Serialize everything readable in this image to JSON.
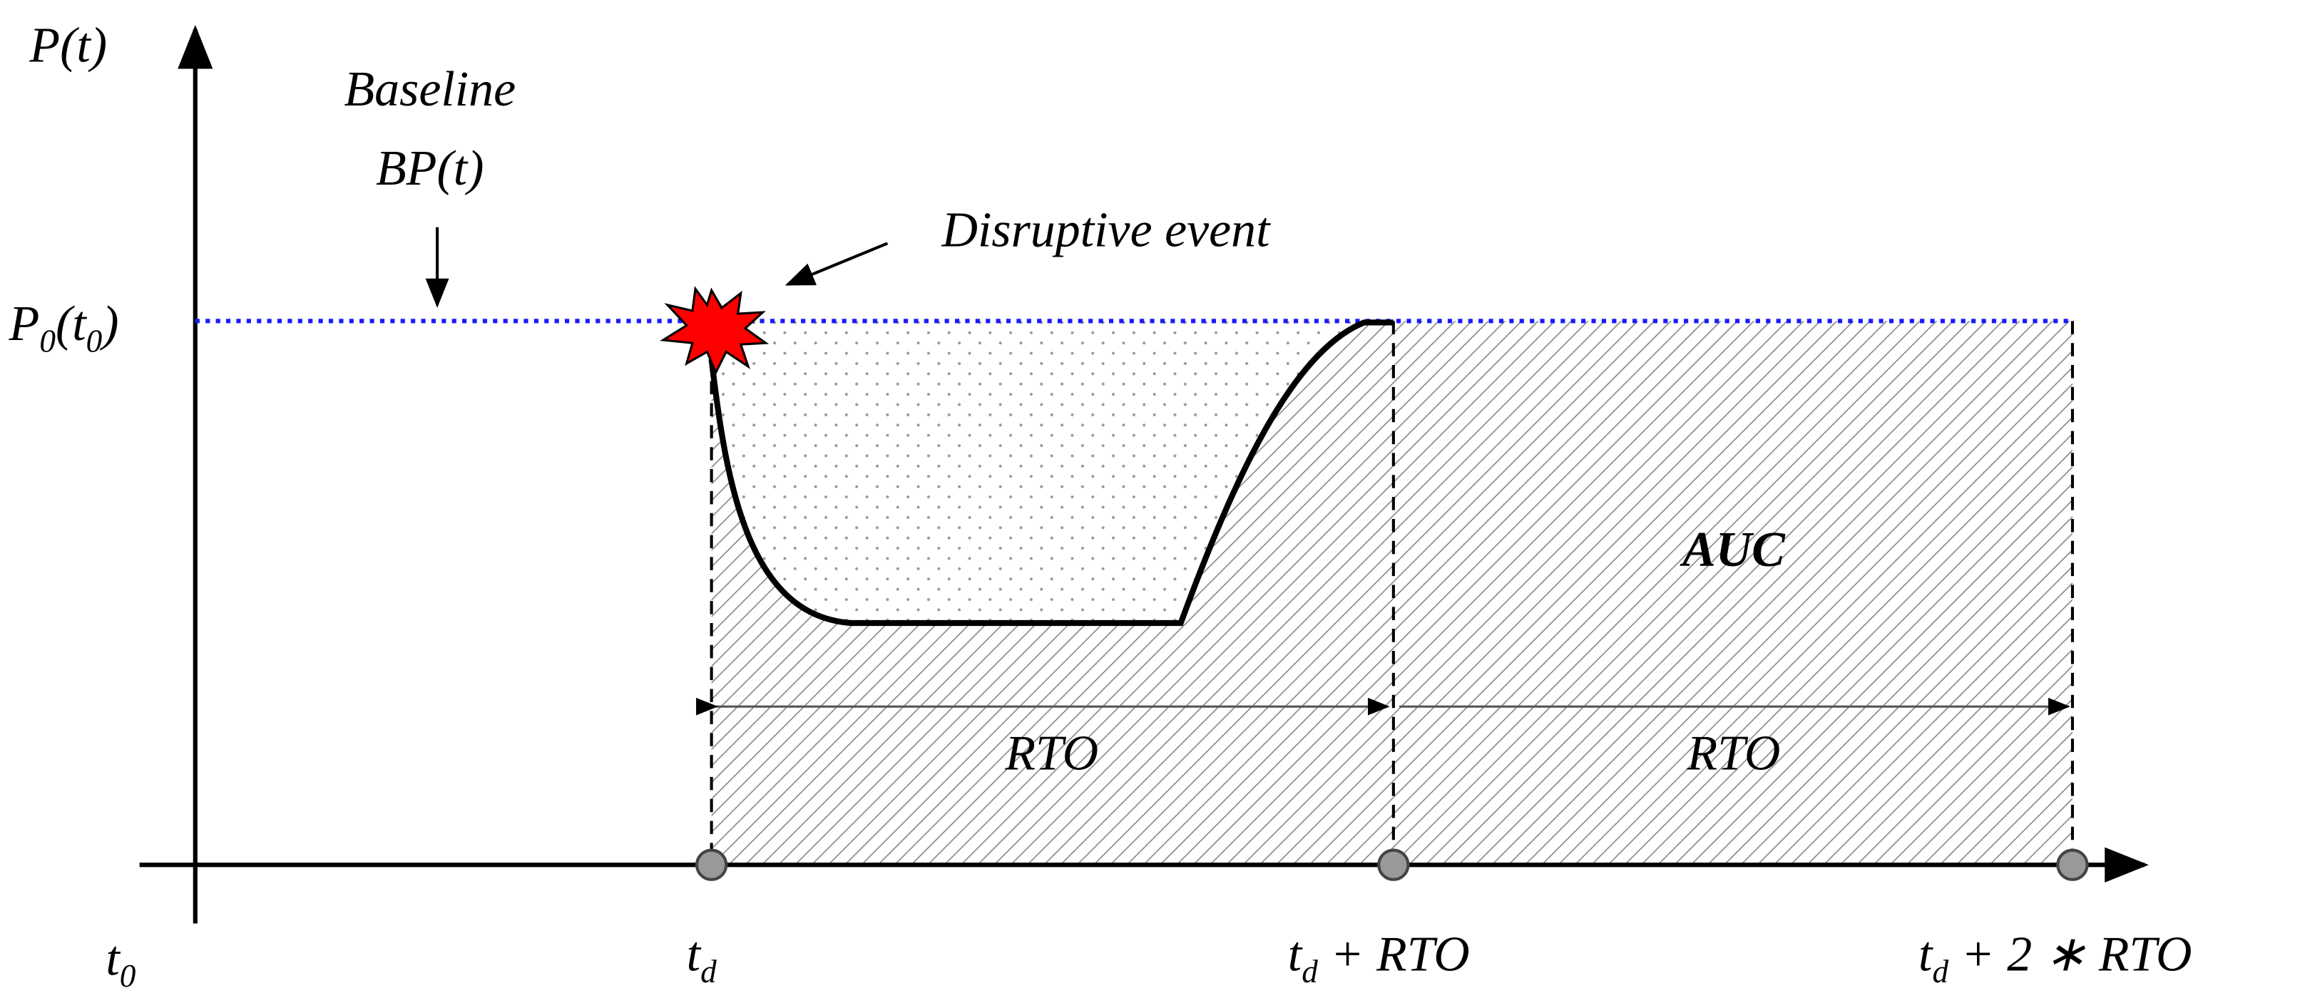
{
  "axes": {
    "y_label": {
      "main": "P",
      "rest": "(t)"
    },
    "x_origin": {
      "main": "t",
      "sub": "0"
    }
  },
  "baseline": {
    "line1": "Baseline",
    "line2": {
      "main": "BP",
      "rest": "(t)"
    },
    "level": {
      "main": "P",
      "sub": "0",
      "mid": "(t",
      "sub2": "0",
      "end": ")"
    }
  },
  "event": "Disruptive event",
  "area": "AUC",
  "intervals": [
    "RTO",
    "RTO"
  ],
  "x_labels": [
    {
      "main": "t",
      "sub": "d"
    },
    {
      "main": "t",
      "sub": "d",
      "rest": " + RTO"
    },
    {
      "main": "t",
      "sub": "d",
      "rest": " + 2 ∗ RTO"
    }
  ]
}
